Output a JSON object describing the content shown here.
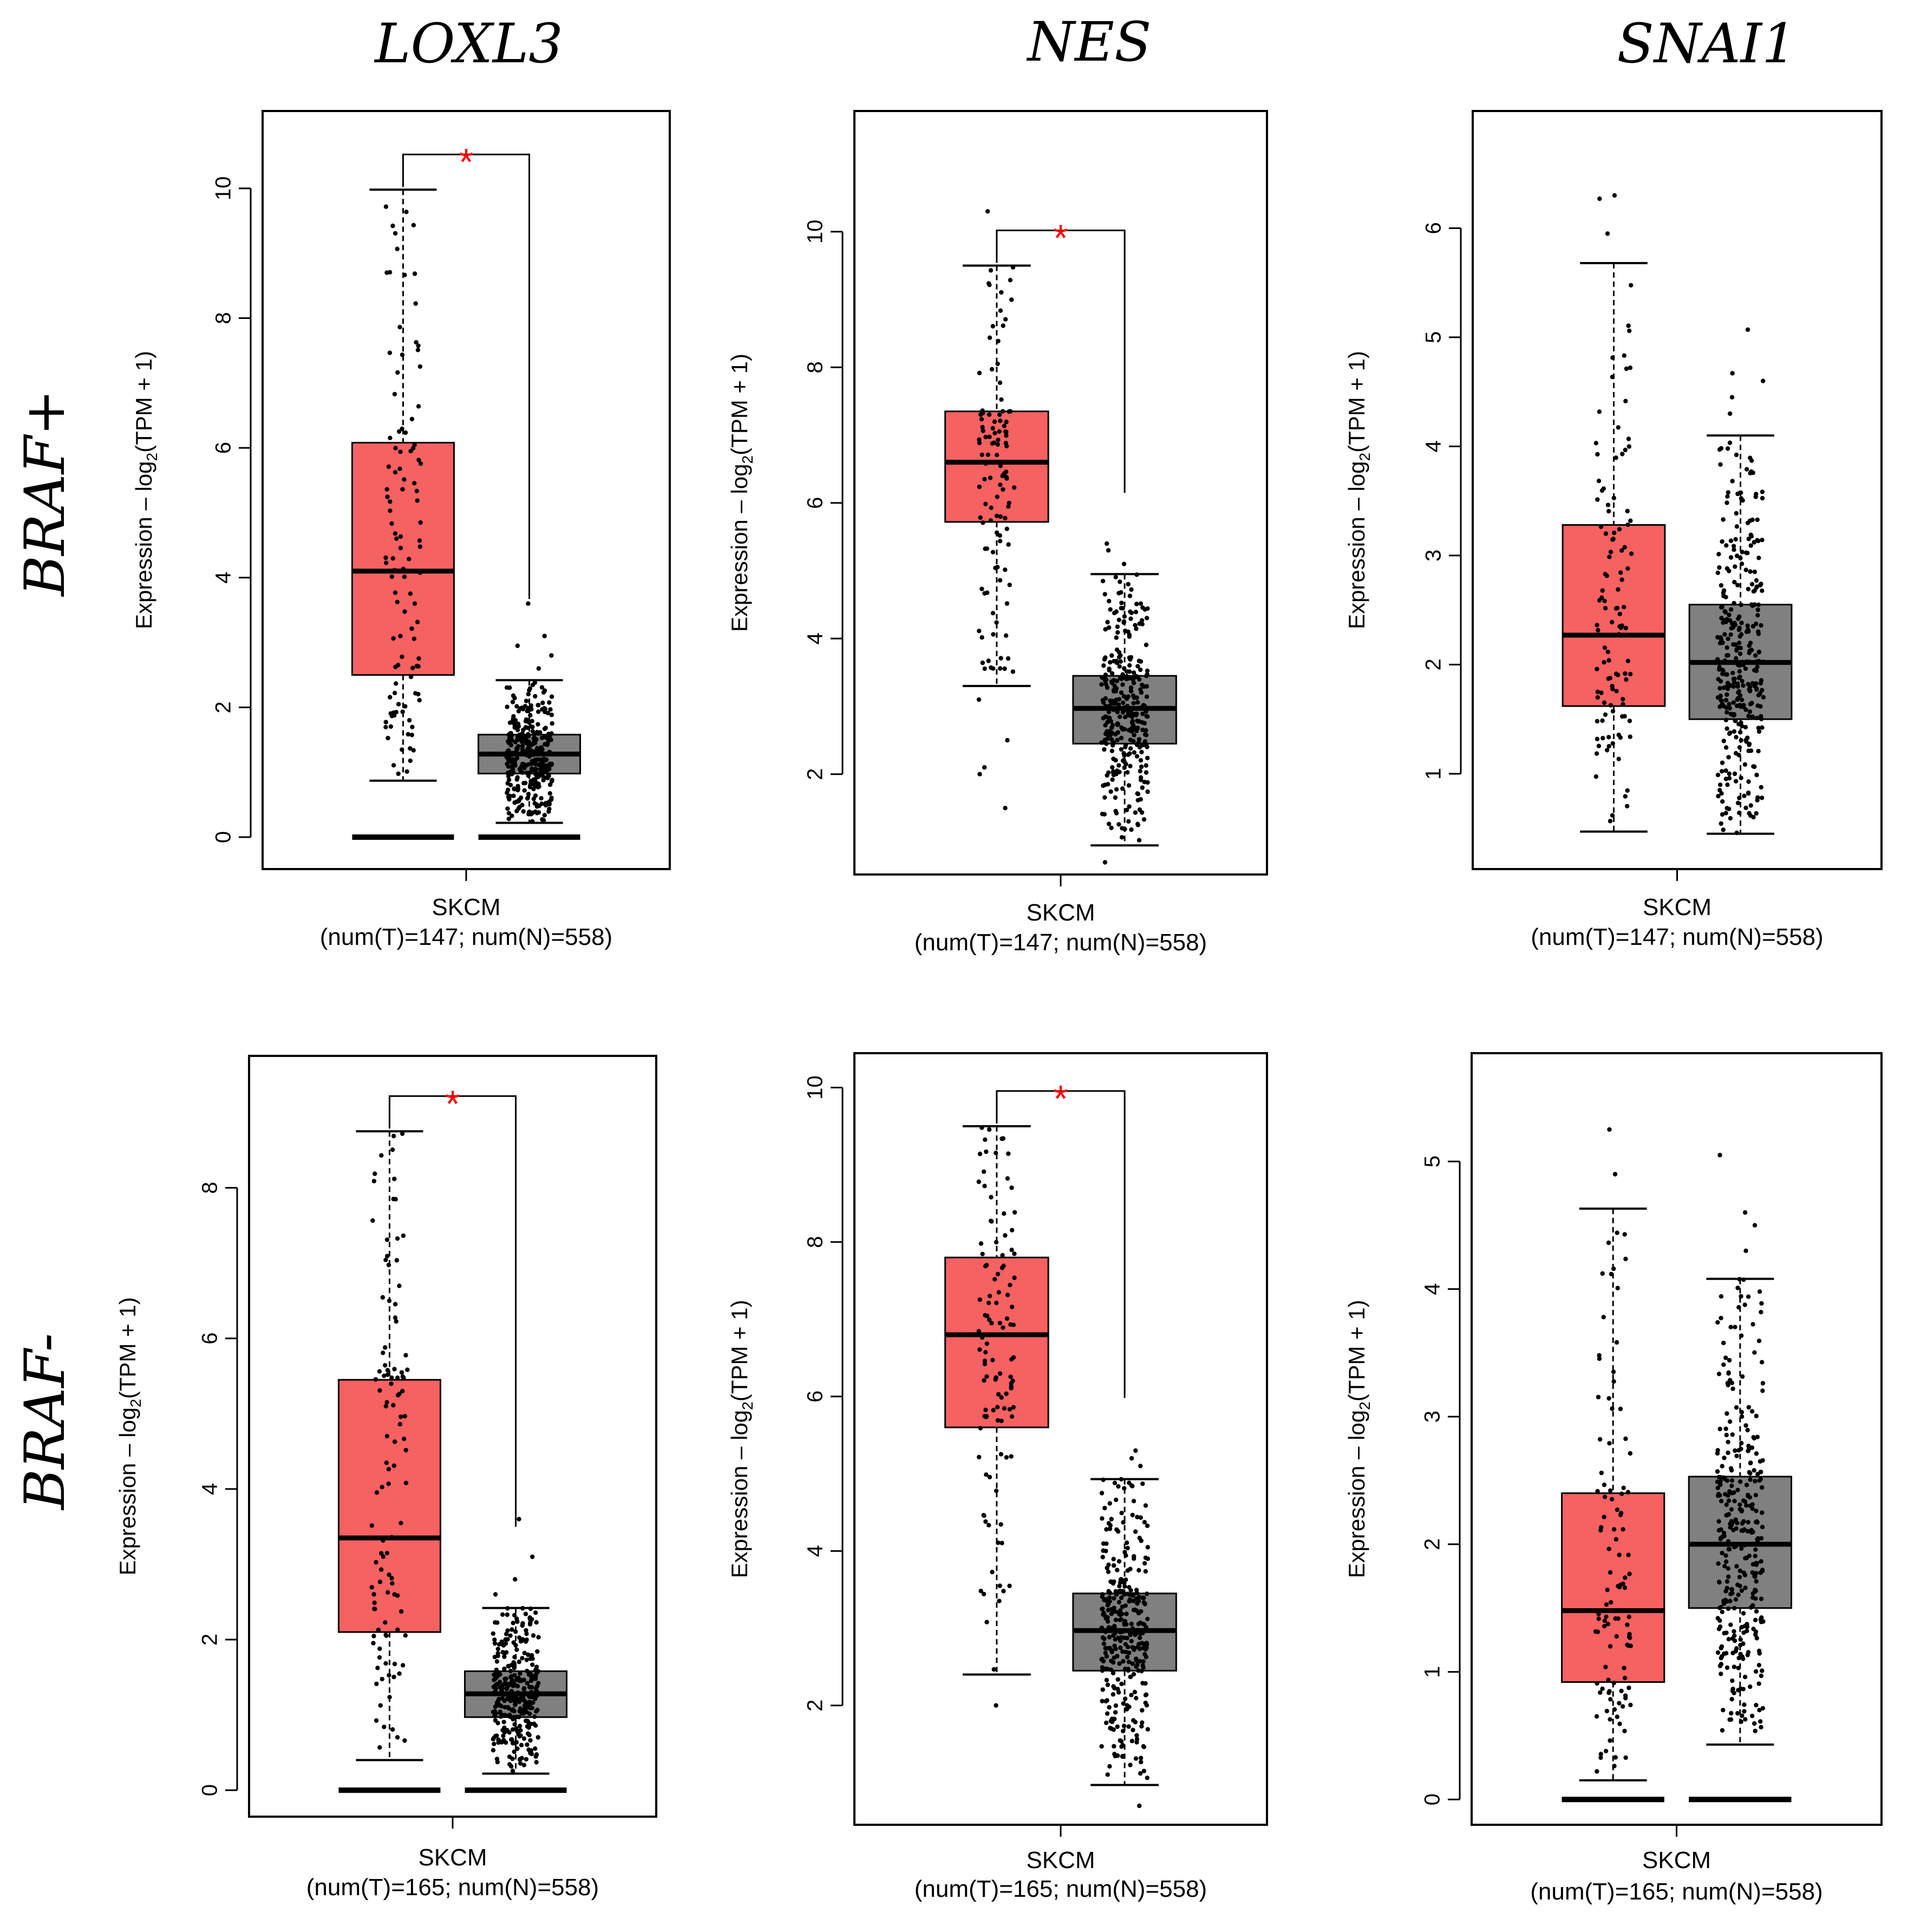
{
  "colors": {
    "tumor": "#f66161",
    "normal": "#808080",
    "star": "#ff0000",
    "line": "#000000"
  },
  "row_labels": [
    "BRAF+",
    "BRAF-"
  ],
  "column_titles": [
    "LOXL3",
    "NES",
    "SNAI1"
  ],
  "ylabel_prefix": "Expression – log",
  "ylabel_sub": "2",
  "ylabel_suffix": "(TPM + 1)",
  "significance_mark": "*",
  "chart_data": [
    {
      "type": "box",
      "title": "LOXL3",
      "row": "BRAF+",
      "category": "SKCM",
      "sample_note": "(num(T)=147; num(N)=558)",
      "ylim": [
        -0.2,
        10.9
      ],
      "yticks": [
        0,
        2,
        4,
        6,
        8,
        10
      ],
      "significant": true,
      "tumor": {
        "min": 0.87,
        "q1": 2.5,
        "median": 4.1,
        "q3": 6.08,
        "max": 9.98,
        "n": 147,
        "outliers": []
      },
      "normal": {
        "min": 0.22,
        "q1": 0.98,
        "median": 1.28,
        "q3": 1.58,
        "max": 2.42,
        "n": 558,
        "outliers": [
          2.6,
          2.8,
          2.95,
          3.1,
          3.6
        ]
      }
    },
    {
      "type": "box",
      "title": "NES",
      "row": "BRAF+",
      "category": "SKCM",
      "sample_note": "(num(T)=147; num(N)=558)",
      "ylim": [
        0.8,
        11.5
      ],
      "yticks": [
        2,
        4,
        6,
        8,
        10
      ],
      "significant": true,
      "tumor": {
        "min": 3.3,
        "q1": 5.72,
        "median": 6.6,
        "q3": 7.35,
        "max": 9.5,
        "n": 147,
        "outliers": [
          10.3,
          3.1,
          2.5,
          2.1,
          2.0,
          1.5
        ]
      },
      "normal": {
        "min": 0.95,
        "q1": 2.45,
        "median": 2.97,
        "q3": 3.45,
        "max": 4.95,
        "n": 558,
        "outliers": [
          5.1,
          5.3,
          5.4,
          0.7
        ]
      }
    },
    {
      "type": "box",
      "title": "SNAI1",
      "row": "BRAF+",
      "category": "SKCM",
      "sample_note": "(num(T)=147; num(N)=558)",
      "ylim": [
        0.3,
        6.9
      ],
      "yticks": [
        1,
        2,
        3,
        4,
        5,
        6
      ],
      "significant": false,
      "tumor": {
        "min": 0.47,
        "q1": 1.62,
        "median": 2.27,
        "q3": 3.28,
        "max": 5.68,
        "n": 147,
        "outliers": [
          5.95,
          6.27,
          6.3
        ]
      },
      "normal": {
        "min": 0.45,
        "q1": 1.5,
        "median": 2.02,
        "q3": 2.55,
        "max": 4.1,
        "n": 558,
        "outliers": [
          4.3,
          4.45,
          4.6,
          4.67,
          5.07
        ]
      }
    },
    {
      "type": "box",
      "title": "LOXL3",
      "row": "BRAF-",
      "category": "SKCM",
      "sample_note": "(num(T)=165; num(N)=558)",
      "ylim": [
        -0.1,
        9.5
      ],
      "yticks": [
        0,
        2,
        4,
        6,
        8
      ],
      "significant": true,
      "tumor": {
        "min": 0.4,
        "q1": 2.1,
        "median": 3.35,
        "q3": 5.45,
        "max": 8.75,
        "n": 165,
        "outliers": []
      },
      "normal": {
        "min": 0.22,
        "q1": 0.97,
        "median": 1.28,
        "q3": 1.58,
        "max": 2.42,
        "n": 558,
        "outliers": [
          2.6,
          2.8,
          3.1,
          3.6
        ]
      }
    },
    {
      "type": "box",
      "title": "NES",
      "row": "BRAF-",
      "category": "SKCM",
      "sample_note": "(num(T)=165; num(N)=558)",
      "ylim": [
        0.7,
        10.2
      ],
      "yticks": [
        2,
        4,
        6,
        8,
        10
      ],
      "significant": true,
      "tumor": {
        "min": 2.4,
        "q1": 5.6,
        "median": 6.8,
        "q3": 7.8,
        "max": 9.5,
        "n": 165,
        "outliers": [
          2.0
        ]
      },
      "normal": {
        "min": 0.97,
        "q1": 2.45,
        "median": 2.97,
        "q3": 3.45,
        "max": 4.93,
        "n": 558,
        "outliers": [
          5.1,
          5.2,
          5.3,
          0.7
        ]
      }
    },
    {
      "type": "box",
      "title": "SNAI1",
      "row": "BRAF-",
      "category": "SKCM",
      "sample_note": "(num(T)=165; num(N)=558)",
      "ylim": [
        -0.05,
        5.7
      ],
      "yticks": [
        0,
        1,
        2,
        3,
        4,
        5
      ],
      "significant": false,
      "tumor": {
        "min": 0.15,
        "q1": 0.92,
        "median": 1.48,
        "q3": 2.4,
        "max": 4.63,
        "n": 165,
        "outliers": [
          4.9,
          5.25
        ]
      },
      "normal": {
        "min": 0.43,
        "q1": 1.5,
        "median": 2.0,
        "q3": 2.53,
        "max": 4.08,
        "n": 558,
        "outliers": [
          4.3,
          4.5,
          4.6,
          5.05
        ]
      }
    }
  ]
}
